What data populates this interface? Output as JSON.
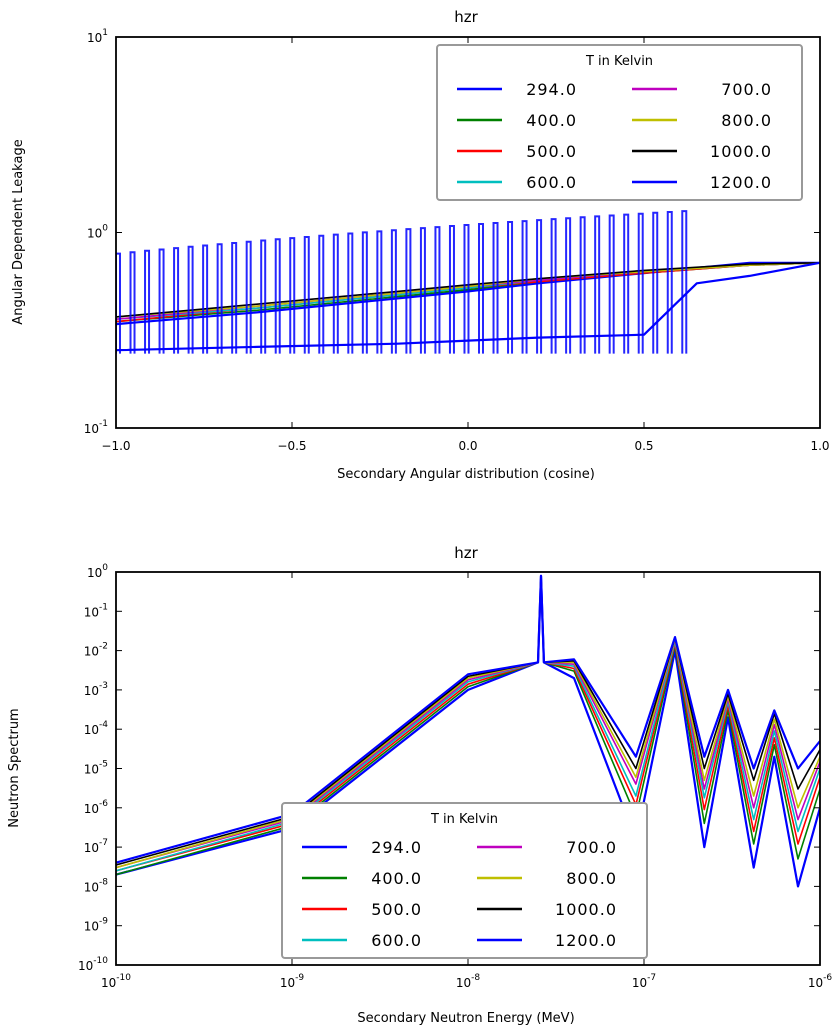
{
  "chart_data": [
    {
      "type": "line",
      "title": "hzr",
      "xlabel": "Secondary Angular distribution (cosine)",
      "ylabel": "Angular Dependent Leakage",
      "xlim": [
        -1.0,
        1.0
      ],
      "ylim": [
        0.1,
        10
      ],
      "yscale": "log",
      "x_ticks": [
        "−1.0",
        "−0.5",
        "0.0",
        "0.5",
        "1.0"
      ],
      "y_ticks": [
        {
          "base": "10",
          "exp": "-1",
          "value": 0.1
        },
        {
          "base": "10",
          "exp": "0",
          "value": 1
        },
        {
          "base": "10",
          "exp": "1",
          "value": 10
        }
      ],
      "legend": {
        "title": "T in Kelvin",
        "position": "upper right",
        "columns": 2
      },
      "series": [
        {
          "name": "294.0",
          "color": "#0000ff",
          "x": [
            -1.0,
            -0.6,
            -0.2,
            0.0,
            0.2,
            0.5,
            0.65,
            0.8,
            1.0
          ],
          "values": [
            0.34,
            0.39,
            0.46,
            0.5,
            0.55,
            0.62,
            0.66,
            0.7,
            0.7
          ]
        },
        {
          "name": "400.0",
          "color": "#008000",
          "x": [
            -1.0,
            -0.6,
            -0.2,
            0.0,
            0.2,
            0.5,
            0.8,
            1.0
          ],
          "values": [
            0.35,
            0.4,
            0.47,
            0.51,
            0.56,
            0.62,
            0.68,
            0.7
          ]
        },
        {
          "name": "500.0",
          "color": "#ff0000",
          "x": [
            -1.0,
            -0.6,
            -0.2,
            0.0,
            0.2,
            0.5,
            0.8,
            1.0
          ],
          "values": [
            0.35,
            0.41,
            0.48,
            0.52,
            0.56,
            0.62,
            0.68,
            0.7
          ]
        },
        {
          "name": "600.0",
          "color": "#00bfbf",
          "x": [
            -1.0,
            -0.6,
            -0.2,
            0.0,
            0.2,
            0.5,
            0.8,
            1.0
          ],
          "values": [
            0.36,
            0.41,
            0.48,
            0.52,
            0.57,
            0.63,
            0.68,
            0.7
          ]
        },
        {
          "name": "700.0",
          "color": "#bf00bf",
          "x": [
            -1.0,
            -0.6,
            -0.2,
            0.0,
            0.2,
            0.5,
            0.8,
            1.0
          ],
          "values": [
            0.36,
            0.42,
            0.49,
            0.53,
            0.57,
            0.63,
            0.68,
            0.7
          ]
        },
        {
          "name": "800.0",
          "color": "#bfbf00",
          "x": [
            -1.0,
            -0.6,
            -0.2,
            0.0,
            0.2,
            0.5,
            0.8,
            1.0
          ],
          "values": [
            0.37,
            0.42,
            0.49,
            0.53,
            0.58,
            0.63,
            0.68,
            0.7
          ]
        },
        {
          "name": "1000.0",
          "color": "#000000",
          "x": [
            -1.0,
            -0.6,
            -0.2,
            0.0,
            0.2,
            0.5,
            0.8,
            1.0
          ],
          "values": [
            0.37,
            0.43,
            0.5,
            0.54,
            0.58,
            0.64,
            0.69,
            0.7
          ]
        },
        {
          "name": "1200.0",
          "color": "#0000ff",
          "x": [
            -1.0,
            -0.6,
            -0.2,
            0.0,
            0.2,
            0.5,
            0.65,
            0.8,
            1.0
          ],
          "values": [
            0.25,
            0.26,
            0.27,
            0.28,
            0.29,
            0.3,
            0.55,
            0.6,
            0.7
          ],
          "oscillation_max": 1.3,
          "oscillation_min": 0.24
        }
      ]
    },
    {
      "type": "line",
      "title": "hzr",
      "xlabel": "Secondary Neutron Energy (MeV)",
      "ylabel": "Neutron Spectrum",
      "xscale": "log",
      "yscale": "log",
      "xlim": [
        1e-10,
        1e-06
      ],
      "ylim": [
        1e-10,
        1
      ],
      "x_ticks": [
        {
          "base": "10",
          "exp": "-10",
          "value": 1e-10
        },
        {
          "base": "10",
          "exp": "-9",
          "value": 1e-09
        },
        {
          "base": "10",
          "exp": "-8",
          "value": 1e-08
        },
        {
          "base": "10",
          "exp": "-7",
          "value": 1e-07
        },
        {
          "base": "10",
          "exp": "-6",
          "value": 1e-06
        }
      ],
      "y_ticks": [
        {
          "base": "10",
          "exp": "0",
          "value": 1
        },
        {
          "base": "10",
          "exp": "-1",
          "value": 0.1
        },
        {
          "base": "10",
          "exp": "-2",
          "value": 0.01
        },
        {
          "base": "10",
          "exp": "-3",
          "value": 0.001
        },
        {
          "base": "10",
          "exp": "-4",
          "value": 0.0001
        },
        {
          "base": "10",
          "exp": "-5",
          "value": 1e-05
        },
        {
          "base": "10",
          "exp": "-6",
          "value": 1e-06
        },
        {
          "base": "10",
          "exp": "-7",
          "value": 1e-07
        },
        {
          "base": "10",
          "exp": "-8",
          "value": 1e-08
        },
        {
          "base": "10",
          "exp": "-9",
          "value": 1e-09
        },
        {
          "base": "10",
          "exp": "-10",
          "value": 1e-10
        }
      ],
      "legend": {
        "title": "T in Kelvin",
        "position": "lower center",
        "columns": 2
      },
      "series": [
        {
          "name": "294.0",
          "color": "#0000ff",
          "x": [
            1e-10,
            1e-09,
            1e-08,
            2.5e-08,
            2.6e-08,
            2.7e-08,
            4e-08,
            9e-08,
            1.5e-07,
            2.2e-07,
            3e-07,
            4.2e-07,
            5.5e-07,
            7.5e-07,
            1e-06
          ],
          "values": [
            2e-08,
            3e-07,
            0.001,
            0.005,
            0.8,
            0.005,
            0.002,
            1.5e-07,
            0.01,
            1e-07,
            0.0002,
            3e-08,
            2e-05,
            1e-08,
            1e-06
          ]
        },
        {
          "name": "400.0",
          "color": "#008000",
          "x": [
            1e-10,
            1e-09,
            1e-08,
            2.5e-08,
            2.6e-08,
            2.7e-08,
            4e-08,
            9e-08,
            1.5e-07,
            2.2e-07,
            3e-07,
            4.2e-07,
            5.5e-07,
            7.5e-07,
            1e-06
          ],
          "values": [
            2e-08,
            3.5e-07,
            0.0012,
            0.005,
            0.8,
            0.005,
            0.003,
            6e-07,
            0.013,
            4e-07,
            0.0003,
            1.2e-07,
            4e-05,
            5e-08,
            3e-06
          ]
        },
        {
          "name": "500.0",
          "color": "#ff0000",
          "x": [
            1e-10,
            1e-09,
            1e-08,
            2.5e-08,
            2.6e-08,
            2.7e-08,
            4e-08,
            9e-08,
            1.5e-07,
            2.2e-07,
            3e-07,
            4.2e-07,
            5.5e-07,
            7.5e-07,
            1e-06
          ],
          "values": [
            2.5e-08,
            4e-07,
            0.0014,
            0.005,
            0.8,
            0.005,
            0.0035,
            1.2e-06,
            0.015,
            9e-07,
            0.0004,
            2.5e-07,
            6e-05,
            1.2e-07,
            6e-06
          ]
        },
        {
          "name": "600.0",
          "color": "#00bfbf",
          "x": [
            1e-10,
            1e-09,
            1e-08,
            2.5e-08,
            2.6e-08,
            2.7e-08,
            4e-08,
            9e-08,
            1.5e-07,
            2.2e-07,
            3e-07,
            4.2e-07,
            5.5e-07,
            7.5e-07,
            1e-06
          ],
          "values": [
            2.5e-08,
            4.5e-07,
            0.0016,
            0.005,
            0.8,
            0.005,
            0.004,
            2e-06,
            0.017,
            1.8e-06,
            0.0005,
            5e-07,
            9e-05,
            2.5e-07,
            1e-05
          ]
        },
        {
          "name": "700.0",
          "color": "#bf00bf",
          "x": [
            1e-10,
            1e-09,
            1e-08,
            2.5e-08,
            2.6e-08,
            2.7e-08,
            4e-08,
            9e-08,
            1.5e-07,
            2.2e-07,
            3e-07,
            4.2e-07,
            5.5e-07,
            7.5e-07,
            1e-06
          ],
          "values": [
            3e-08,
            5e-07,
            0.0018,
            0.005,
            0.8,
            0.005,
            0.0045,
            4e-06,
            0.019,
            3e-06,
            0.0006,
            1e-06,
            0.00013,
            5e-07,
            1.5e-05
          ]
        },
        {
          "name": "800.0",
          "color": "#bfbf00",
          "x": [
            1e-10,
            1e-09,
            1e-08,
            2.5e-08,
            2.6e-08,
            2.7e-08,
            4e-08,
            9e-08,
            1.5e-07,
            2.2e-07,
            3e-07,
            4.2e-07,
            5.5e-07,
            7.5e-07,
            1e-06
          ],
          "values": [
            3e-08,
            5.5e-07,
            0.002,
            0.005,
            0.8,
            0.005,
            0.005,
            6e-06,
            0.02,
            5e-06,
            0.0007,
            2e-06,
            0.00018,
            1e-06,
            2e-05
          ]
        },
        {
          "name": "1000.0",
          "color": "#000000",
          "x": [
            1e-10,
            1e-09,
            1e-08,
            2.5e-08,
            2.6e-08,
            2.7e-08,
            4e-08,
            9e-08,
            1.5e-07,
            2.2e-07,
            3e-07,
            4.2e-07,
            5.5e-07,
            7.5e-07,
            1e-06
          ],
          "values": [
            3.5e-08,
            6e-07,
            0.0022,
            0.005,
            0.8,
            0.005,
            0.0055,
            1e-05,
            0.021,
            1e-05,
            0.0008,
            5e-06,
            0.00025,
            3e-06,
            3e-05
          ]
        },
        {
          "name": "1200.0",
          "color": "#0000ff",
          "x": [
            1e-10,
            1e-09,
            1e-08,
            2.5e-08,
            2.6e-08,
            2.7e-08,
            4e-08,
            9e-08,
            1.5e-07,
            2.2e-07,
            3e-07,
            4.2e-07,
            5.5e-07,
            7.5e-07,
            1e-06
          ],
          "values": [
            4e-08,
            7e-07,
            0.0025,
            0.005,
            0.8,
            0.005,
            0.006,
            2e-05,
            0.022,
            2e-05,
            0.001,
            1e-05,
            0.0003,
            1e-05,
            5e-05
          ]
        }
      ]
    }
  ]
}
